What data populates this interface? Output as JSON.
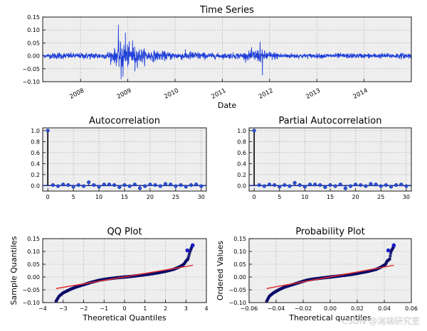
{
  "chart_data": [
    {
      "id": "ts",
      "type": "line",
      "title": "Time Series",
      "xlabel": "Date",
      "ylabel": "",
      "xlim": [
        2007.2,
        2015.0
      ],
      "ylim": [
        -0.1,
        0.15
      ],
      "yticks": [
        -0.1,
        -0.05,
        0.0,
        0.05,
        0.1,
        0.15
      ],
      "ytick_labels": [
        "−0.10",
        "−0.05",
        "0.00",
        "0.05",
        "0.10",
        "0.15"
      ],
      "xticks": [
        2008,
        2009,
        2010,
        2011,
        2012,
        2013,
        2014
      ],
      "xtick_labels": [
        "2008",
        "2009",
        "2010",
        "2011",
        "2012",
        "2013",
        "2014"
      ],
      "grid": true,
      "line_color": "#1f3fd8",
      "volatility_profile": [
        [
          2007.2,
          0.006
        ],
        [
          2007.5,
          0.012
        ],
        [
          2007.8,
          0.01
        ],
        [
          2008.0,
          0.01
        ],
        [
          2008.3,
          0.012
        ],
        [
          2008.5,
          0.01
        ],
        [
          2008.7,
          0.022
        ],
        [
          2008.85,
          0.045
        ],
        [
          2009.0,
          0.038
        ],
        [
          2009.2,
          0.03
        ],
        [
          2009.4,
          0.02
        ],
        [
          2009.7,
          0.016
        ],
        [
          2010.0,
          0.012
        ],
        [
          2010.4,
          0.016
        ],
        [
          2010.7,
          0.01
        ],
        [
          2011.0,
          0.009
        ],
        [
          2011.5,
          0.012
        ],
        [
          2011.7,
          0.024
        ],
        [
          2011.95,
          0.016
        ],
        [
          2012.3,
          0.01
        ],
        [
          2012.7,
          0.008
        ],
        [
          2013.0,
          0.008
        ],
        [
          2013.5,
          0.009
        ],
        [
          2014.0,
          0.008
        ],
        [
          2014.5,
          0.009
        ],
        [
          2015.0,
          0.01
        ]
      ],
      "spikes": [
        [
          2008.8,
          0.12
        ],
        [
          2008.86,
          -0.09
        ],
        [
          2008.95,
          0.09
        ],
        [
          2008.9,
          -0.08
        ],
        [
          2011.85,
          -0.075
        ],
        [
          2011.8,
          0.055
        ],
        [
          2009.1,
          0.06
        ],
        [
          2009.15,
          -0.06
        ]
      ]
    },
    {
      "id": "acf",
      "type": "stem",
      "title": "Autocorrelation",
      "xlim": [
        -1,
        31
      ],
      "ylim": [
        -0.1,
        1.05
      ],
      "xticks": [
        0,
        5,
        10,
        15,
        20,
        25,
        30
      ],
      "xtick_labels": [
        "0",
        "5",
        "10",
        "15",
        "20",
        "25",
        "30"
      ],
      "yticks": [
        0.0,
        0.2,
        0.4,
        0.6,
        0.8,
        1.0
      ],
      "ytick_labels": [
        "0.0",
        "0.2",
        "0.4",
        "0.6",
        "0.8",
        "1.0"
      ],
      "grid": true,
      "values": [
        1.0,
        0.01,
        -0.01,
        0.02,
        0.01,
        -0.02,
        0.01,
        -0.01,
        0.06,
        0.01,
        -0.02,
        0.02,
        0.02,
        0.01,
        -0.03,
        0.01,
        -0.01,
        0.02,
        -0.05,
        -0.01,
        0.02,
        0.01,
        -0.01,
        0.03,
        0.02,
        -0.01,
        0.01,
        -0.02,
        0.01,
        0.02,
        -0.01
      ]
    },
    {
      "id": "pacf",
      "type": "stem",
      "title": "Partial Autocorrelation",
      "xlim": [
        -1,
        31
      ],
      "ylim": [
        -0.1,
        1.05
      ],
      "xticks": [
        0,
        5,
        10,
        15,
        20,
        25,
        30
      ],
      "xtick_labels": [
        "0",
        "5",
        "10",
        "15",
        "20",
        "25",
        "30"
      ],
      "yticks": [
        0.0,
        0.2,
        0.4,
        0.6,
        0.8,
        1.0
      ],
      "ytick_labels": [
        "0.0",
        "0.2",
        "0.4",
        "0.6",
        "0.8",
        "1.0"
      ],
      "grid": true,
      "values": [
        1.0,
        0.01,
        -0.01,
        0.02,
        0.01,
        -0.02,
        0.01,
        -0.01,
        0.05,
        0.01,
        -0.02,
        0.02,
        0.02,
        0.01,
        -0.03,
        0.01,
        -0.01,
        0.02,
        -0.05,
        -0.01,
        0.02,
        0.01,
        -0.01,
        0.03,
        0.02,
        -0.01,
        0.01,
        -0.02,
        0.01,
        0.02,
        -0.01
      ]
    },
    {
      "id": "qq",
      "type": "scatter",
      "title": "QQ Plot",
      "xlabel": "Theoretical Quantiles",
      "ylabel": "Sample Quantiles",
      "xlim": [
        -4,
        4
      ],
      "ylim": [
        -0.1,
        0.15
      ],
      "xticks": [
        -4,
        -3,
        -2,
        -1,
        0,
        1,
        2,
        3,
        4
      ],
      "xtick_labels": [
        "−4",
        "−3",
        "−2",
        "−1",
        "0",
        "1",
        "2",
        "3",
        "4"
      ],
      "yticks": [
        -0.1,
        -0.05,
        0.0,
        0.05,
        0.1,
        0.15
      ],
      "ytick_labels": [
        "−0.10",
        "−0.05",
        "0.00",
        "0.05",
        "0.10",
        "0.15"
      ],
      "grid": true,
      "quantile_profile": [
        [
          -3.35,
          -0.095
        ],
        [
          -3.2,
          -0.075
        ],
        [
          -3.0,
          -0.062
        ],
        [
          -2.7,
          -0.05
        ],
        [
          -2.4,
          -0.04
        ],
        [
          -2.0,
          -0.03
        ],
        [
          -1.6,
          -0.02
        ],
        [
          -1.2,
          -0.012
        ],
        [
          -0.8,
          -0.007
        ],
        [
          -0.4,
          -0.003
        ],
        [
          0.0,
          0.0
        ],
        [
          0.4,
          0.003
        ],
        [
          0.8,
          0.007
        ],
        [
          1.2,
          0.011
        ],
        [
          1.6,
          0.016
        ],
        [
          2.0,
          0.022
        ],
        [
          2.4,
          0.03
        ],
        [
          2.7,
          0.04
        ],
        [
          2.9,
          0.05
        ],
        [
          3.0,
          0.062
        ],
        [
          3.1,
          0.07
        ],
        [
          3.2,
          0.1
        ],
        [
          3.3,
          0.12
        ]
      ],
      "outliers": [
        [
          3.07,
          0.104
        ],
        [
          3.33,
          0.124
        ]
      ],
      "fit_line": [
        [
          -3.35,
          -0.045
        ],
        [
          3.35,
          0.046
        ]
      ],
      "point_color": "#1a1aaa",
      "line_color": "#e03030"
    },
    {
      "id": "prob",
      "type": "scatter",
      "title": "Probability Plot",
      "xlabel": "Theoretical quantiles",
      "ylabel": "Ordered Values",
      "xlim": [
        -0.06,
        0.06
      ],
      "ylim": [
        -0.1,
        0.15
      ],
      "xticks": [
        -0.06,
        -0.04,
        -0.02,
        0.0,
        0.02,
        0.04,
        0.06
      ],
      "xtick_labels": [
        "−0.06",
        "−0.04",
        "−0.02",
        "0.00",
        "0.02",
        "0.04",
        "0.06"
      ],
      "yticks": [
        -0.1,
        -0.05,
        0.0,
        0.05,
        0.1,
        0.15
      ],
      "ytick_labels": [
        "−0.10",
        "−0.05",
        "0.00",
        "0.05",
        "0.10",
        "0.15"
      ],
      "grid": true,
      "quantile_profile": [
        [
          -0.047,
          -0.095
        ],
        [
          -0.045,
          -0.075
        ],
        [
          -0.042,
          -0.062
        ],
        [
          -0.038,
          -0.05
        ],
        [
          -0.034,
          -0.04
        ],
        [
          -0.028,
          -0.03
        ],
        [
          -0.022,
          -0.02
        ],
        [
          -0.017,
          -0.012
        ],
        [
          -0.011,
          -0.007
        ],
        [
          -0.005,
          -0.003
        ],
        [
          0.0,
          0.0
        ],
        [
          0.005,
          0.003
        ],
        [
          0.011,
          0.007
        ],
        [
          0.017,
          0.011
        ],
        [
          0.022,
          0.016
        ],
        [
          0.028,
          0.022
        ],
        [
          0.034,
          0.03
        ],
        [
          0.038,
          0.04
        ],
        [
          0.041,
          0.05
        ],
        [
          0.042,
          0.062
        ],
        [
          0.044,
          0.07
        ],
        [
          0.045,
          0.1
        ],
        [
          0.047,
          0.12
        ]
      ],
      "outliers": [
        [
          0.043,
          0.104
        ],
        [
          0.047,
          0.124
        ]
      ],
      "fit_line": [
        [
          -0.047,
          -0.045
        ],
        [
          0.047,
          0.046
        ]
      ],
      "point_color": "#1a1aaa",
      "line_color": "#e03030"
    }
  ],
  "watermark": "CSDN @湍端研究室"
}
